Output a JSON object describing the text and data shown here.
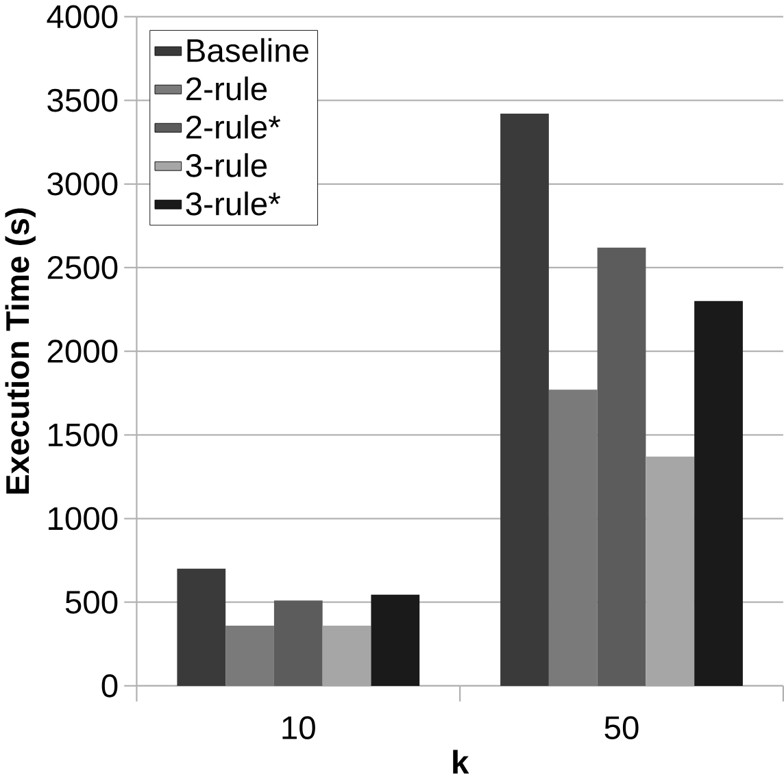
{
  "chart_data": {
    "type": "bar",
    "xlabel": "k",
    "ylabel": "Execution Time (s)",
    "categories": [
      "10",
      "50"
    ],
    "series": [
      {
        "name": "Baseline",
        "color": "#3a3a3a",
        "values": [
          700,
          3420
        ]
      },
      {
        "name": "2-rule",
        "color": "#7a7a7a",
        "values": [
          360,
          1770
        ]
      },
      {
        "name": "2-rule*",
        "color": "#5c5c5c",
        "values": [
          510,
          2620
        ]
      },
      {
        "name": "3-rule",
        "color": "#a6a6a6",
        "values": [
          360,
          1370
        ]
      },
      {
        "name": "3-rule*",
        "color": "#1a1a1a",
        "values": [
          545,
          2300
        ]
      }
    ],
    "ylim": [
      0,
      4000
    ],
    "yticks": [
      0,
      500,
      1000,
      1500,
      2000,
      2500,
      3000,
      3500,
      4000
    ],
    "grid": "y",
    "legend": "top left"
  }
}
